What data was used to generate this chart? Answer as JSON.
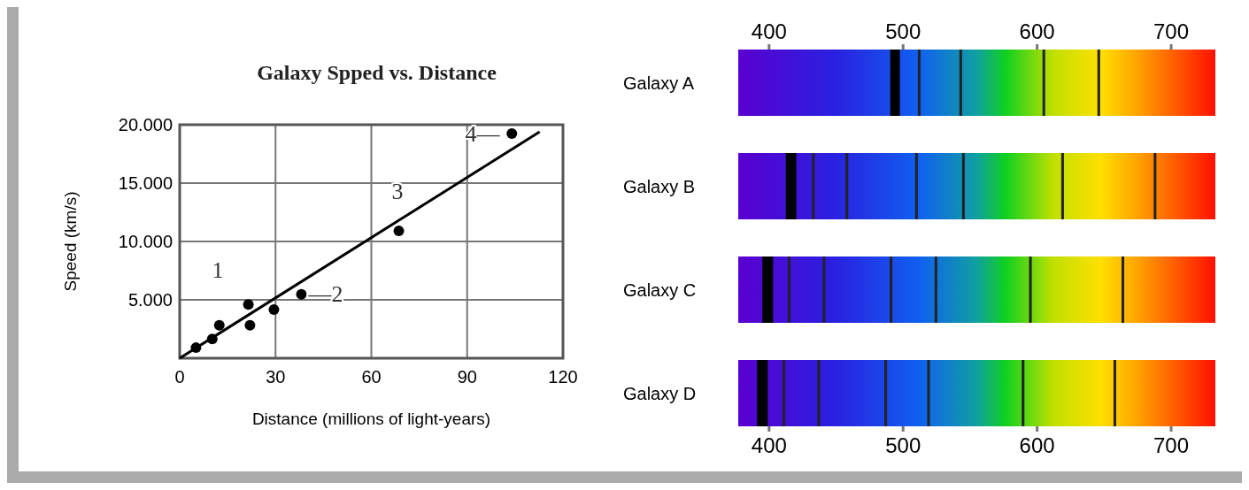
{
  "chart_data": [
    {
      "type": "scatter",
      "title": "Galaxy Spped vs. Distance",
      "xlabel": "Distance (millions of light-years)",
      "ylabel": "Speed (km/s)",
      "xlim": [
        0,
        120
      ],
      "xticks": [
        0,
        30,
        60,
        90,
        120
      ],
      "ylim": [
        0,
        20000
      ],
      "yticks": [
        {
          "value": 0,
          "label": null
        },
        {
          "value": 5000,
          "label": "5.000"
        },
        {
          "value": 10000,
          "label": "10.000"
        },
        {
          "value": 15000,
          "label": "15.000"
        },
        {
          "value": 20000,
          "label": "20.000"
        }
      ],
      "grid": true,
      "series": [
        {
          "type": "scatter",
          "marker": "circle",
          "color": "#000000",
          "x": [
            5.1,
            10.2,
            12.4,
            21.5,
            22.0,
            29.5,
            38.1,
            68.6,
            104
          ],
          "values": [
            900,
            1640,
            2830,
            4600,
            2830,
            4170,
            5480,
            10900,
            19240
          ]
        },
        {
          "type": "line",
          "color": "#000000",
          "x": [
            0,
            112.7
          ],
          "values": [
            0,
            19400
          ]
        }
      ],
      "annotations": [
        "1",
        "—2",
        "3",
        "4—"
      ]
    },
    {
      "type": "bar",
      "orientation": "horizontal",
      "categories": [
        "Galaxy A",
        "Galaxy B",
        "Galaxy C",
        "Galaxy D"
      ],
      "xlim": [
        377,
        733
      ],
      "xticks": [
        400,
        500,
        600,
        700
      ],
      "x2lim": [
        377,
        733
      ],
      "x2ticks": [
        400,
        500,
        600,
        700
      ],
      "series": [
        {
          "base": [
            377,
            377,
            377,
            377
          ],
          "values": [
            356,
            356,
            356,
            356
          ]
        },
        {
          "color": "#000000",
          "base": [
            490.4,
            412.5,
            395,
            391
          ],
          "values": [
            7.2,
            7.8,
            8,
            8
          ]
        },
        {
          "color": "#222222",
          "base": [
            511,
            432,
            414,
            410
          ],
          "values": [
            2,
            2,
            2,
            2
          ]
        },
        {
          "color": "#222222",
          "base": [
            542,
            457,
            440,
            436
          ],
          "values": [
            2,
            2,
            2,
            2
          ]
        },
        {
          "color": "#222222",
          "base": [
            604,
            509,
            490,
            486
          ],
          "values": [
            2,
            2,
            2,
            2
          ]
        },
        {
          "color": "#222222",
          "base": [
            645,
            544,
            523.5,
            518
          ],
          "values": [
            2,
            2,
            2,
            2
          ]
        },
        {
          "color": "#222222",
          "base": [
            null,
            618,
            594,
            588.5
          ],
          "values": [
            null,
            2,
            2,
            2
          ]
        },
        {
          "color": "#222222",
          "base": [
            null,
            687,
            663,
            657
          ],
          "values": [
            null,
            2,
            2,
            2
          ]
        }
      ]
    }
  ]
}
